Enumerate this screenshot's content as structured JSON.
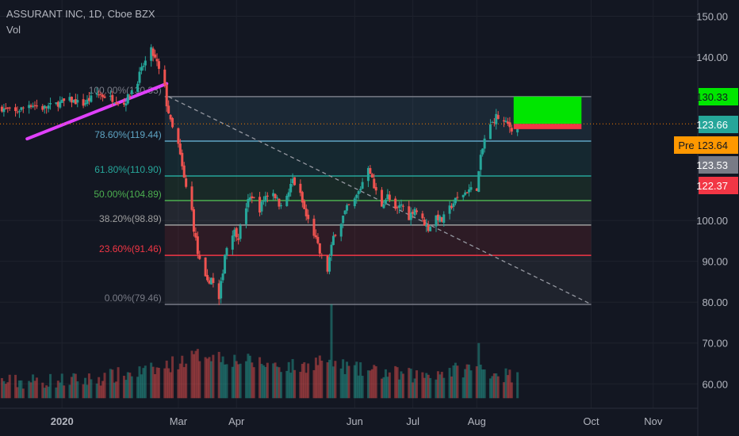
{
  "legend": {
    "symbol_line": "ASSURANT INC, 1D, Cboe BZX",
    "volume_label": "Vol"
  },
  "colors": {
    "background": "#131722",
    "up": "#26a69a",
    "down": "#ef5350",
    "grid": "#1e222d",
    "axis_text": "#b2b5be",
    "trendline": "#e040fb",
    "fib_line_100": "#787b86",
    "fib_line_786": "#5ea4c4",
    "fib_line_618": "#26a69a",
    "fib_line_50": "#4caf50",
    "fib_line_382": "#9e9e9e",
    "fib_line_236": "#f23645",
    "fib_line_0": "#787b86",
    "target_box": "#00e600",
    "stop_box": "#f23645"
  },
  "chart_data": {
    "type": "candlestick",
    "title": "ASSURANT INC, 1D, Cboe BZX",
    "y_axis": {
      "ticks": [
        "150.00",
        "140.00",
        "100.00",
        "90.00",
        "80.00",
        "70.00",
        "60.00"
      ],
      "tick_values": [
        150,
        140,
        100,
        90,
        80,
        70,
        60
      ],
      "ylim": [
        55,
        155
      ]
    },
    "x_axis": {
      "labels": [
        "2020",
        "Mar",
        "Apr",
        "Jun",
        "Jul",
        "Aug",
        "Oct",
        "Nov"
      ],
      "label_dates": [
        "2020-01-02",
        "2020-03-02",
        "2020-04-01",
        "2020-06-01",
        "2020-07-01",
        "2020-08-03",
        "2020-10-01",
        "2020-11-02"
      ],
      "range": [
        "2019-12-01",
        "2020-11-25"
      ]
    },
    "price_tags": [
      {
        "label": "130.33",
        "value": 130.33,
        "color": "#00e600",
        "text_color": "#131722"
      },
      {
        "label": "123.66",
        "value": 123.66,
        "color": "#26a69a",
        "text_color": "#ffffff"
      },
      {
        "label": "123.64",
        "value": 123.64,
        "color": "#ff9800",
        "text_color": "#131722",
        "prefix": "Pre"
      },
      {
        "label": "123.53",
        "value": 123.53,
        "color": "#787b86",
        "text_color": "#ffffff"
      },
      {
        "label": "122.37",
        "value": 122.37,
        "color": "#f23645",
        "text_color": "#ffffff"
      }
    ],
    "fib_retracement": {
      "start_date": "2020-02-24",
      "end_date": "2020-10-01",
      "levels": [
        {
          "label": "100.00%(130.33)",
          "value": 130.33,
          "color": "#787b86"
        },
        {
          "label": "78.60%(119.44)",
          "value": 119.44,
          "color": "#5ea4c4"
        },
        {
          "label": "61.80%(110.90)",
          "value": 110.9,
          "color": "#26a69a"
        },
        {
          "label": "50.00%(104.89)",
          "value": 104.89,
          "color": "#4caf50"
        },
        {
          "label": "38.20%(98.89)",
          "value": 98.89,
          "color": "#9e9e9e"
        },
        {
          "label": "23.60%(91.46)",
          "value": 91.46,
          "color": "#f23645"
        },
        {
          "label": "0.00%(79.46)",
          "value": 79.46,
          "color": "#787b86"
        }
      ]
    },
    "trendline": {
      "x": [
        "2019-12-15",
        "2020-02-25"
      ],
      "y": [
        120,
        133.5
      ]
    },
    "diagonal": {
      "x": [
        "2020-02-26",
        "2020-10-01"
      ],
      "y": [
        130.3,
        79.5
      ]
    },
    "current_price_line": 123.66,
    "position": {
      "start_date": "2020-08-22",
      "end_date": "2020-09-26",
      "entry": 123.66,
      "target": 130.33,
      "stop": 122.37
    },
    "price_path": [
      [
        "2019-12-02",
        127.5
      ],
      [
        "2019-12-09",
        126.5
      ],
      [
        "2019-12-16",
        128.5
      ],
      [
        "2019-12-23",
        127.5
      ],
      [
        "2019-12-30",
        128.5
      ],
      [
        "2020-01-06",
        129.5
      ],
      [
        "2020-01-13",
        128.5
      ],
      [
        "2020-01-20",
        131.0
      ],
      [
        "2020-01-27",
        130.0
      ],
      [
        "2020-02-03",
        128.5
      ],
      [
        "2020-02-10",
        134.5
      ],
      [
        "2020-02-13",
        138.0
      ],
      [
        "2020-02-17",
        141.5
      ],
      [
        "2020-02-20",
        138.5
      ],
      [
        "2020-02-24",
        131.5
      ],
      [
        "2020-02-27",
        124.0
      ],
      [
        "2020-03-02",
        118.0
      ],
      [
        "2020-03-05",
        110.0
      ],
      [
        "2020-03-09",
        102.0
      ],
      [
        "2020-03-12",
        92.0
      ],
      [
        "2020-03-16",
        84.0
      ],
      [
        "2020-03-19",
        86.0
      ],
      [
        "2020-03-23",
        80.0
      ],
      [
        "2020-03-26",
        92.0
      ],
      [
        "2020-03-30",
        98.0
      ],
      [
        "2020-04-02",
        96.0
      ],
      [
        "2020-04-06",
        104.0
      ],
      [
        "2020-04-09",
        106.0
      ],
      [
        "2020-04-13",
        103.0
      ],
      [
        "2020-04-16",
        106.0
      ],
      [
        "2020-04-20",
        107.0
      ],
      [
        "2020-04-23",
        104.0
      ],
      [
        "2020-04-27",
        105.5
      ],
      [
        "2020-04-30",
        110.0
      ],
      [
        "2020-05-04",
        106.0
      ],
      [
        "2020-05-07",
        101.0
      ],
      [
        "2020-05-11",
        97.0
      ],
      [
        "2020-05-14",
        92.0
      ],
      [
        "2020-05-18",
        88.0
      ],
      [
        "2020-05-21",
        96.0
      ],
      [
        "2020-05-25",
        100.0
      ],
      [
        "2020-05-28",
        103.0
      ],
      [
        "2020-06-01",
        105.0
      ],
      [
        "2020-06-04",
        108.0
      ],
      [
        "2020-06-08",
        114.0
      ],
      [
        "2020-06-11",
        108.0
      ],
      [
        "2020-06-15",
        104.0
      ],
      [
        "2020-06-18",
        106.0
      ],
      [
        "2020-06-22",
        102.0
      ],
      [
        "2020-06-25",
        104.0
      ],
      [
        "2020-06-29",
        101.0
      ],
      [
        "2020-07-02",
        103.0
      ],
      [
        "2020-07-06",
        100.0
      ],
      [
        "2020-07-09",
        98.0
      ],
      [
        "2020-07-13",
        101.0
      ],
      [
        "2020-07-16",
        100.0
      ],
      [
        "2020-07-20",
        103.0
      ],
      [
        "2020-07-23",
        105.0
      ],
      [
        "2020-07-27",
        106.5
      ],
      [
        "2020-07-30",
        107.5
      ],
      [
        "2020-08-03",
        108.0
      ],
      [
        "2020-08-05",
        115.0
      ],
      [
        "2020-08-07",
        120.0
      ],
      [
        "2020-08-10",
        123.0
      ],
      [
        "2020-08-13",
        125.5
      ],
      [
        "2020-08-17",
        124.0
      ],
      [
        "2020-08-19",
        123.5
      ],
      [
        "2020-08-21",
        122.5
      ],
      [
        "2020-08-24",
        123.66
      ]
    ],
    "volume_path": [
      [
        "2019-12-02",
        60.5
      ],
      [
        "2020-01-15",
        61.0
      ],
      [
        "2020-02-20",
        63.5
      ],
      [
        "2020-03-02",
        65.5
      ],
      [
        "2020-03-16",
        67.5
      ],
      [
        "2020-03-30",
        66.0
      ],
      [
        "2020-04-15",
        65.0
      ],
      [
        "2020-05-04",
        64.0
      ],
      [
        "2020-05-15",
        66.0
      ],
      [
        "2020-06-01",
        63.5
      ],
      [
        "2020-07-01",
        62.0
      ],
      [
        "2020-08-03",
        64.0
      ],
      [
        "2020-08-24",
        61.5
      ]
    ],
    "volume_spikes": [
      {
        "date": "2020-05-20",
        "value": 79.5
      },
      {
        "date": "2020-08-04",
        "value": 70.0
      }
    ]
  }
}
